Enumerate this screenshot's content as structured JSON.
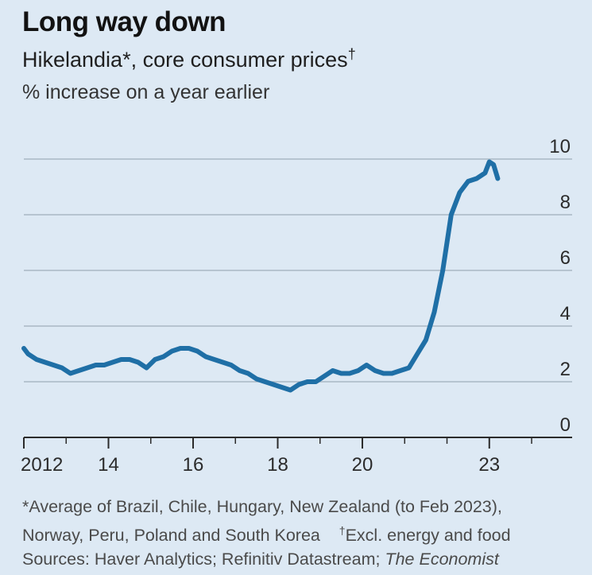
{
  "header": {
    "title": "Long way down",
    "subtitle": "Hikelandia*, core consumer prices",
    "subtitle_mark": "†",
    "unit": "% increase on a year earlier"
  },
  "footnote": {
    "line1": "*Average of Brazil, Chile, Hungary, New Zealand (to Feb 2023),",
    "line2a": "Norway, Peru, Poland and South Korea",
    "line2_mark": "†",
    "line2b": "Excl. energy and food",
    "sources_prefix": "Sources: Haver Analytics; Refinitiv Datastream; ",
    "sources_italic": "The Economist"
  },
  "colors": {
    "background": "#dde9f4",
    "line": "#1f6fa6",
    "grid": "#a9b7c3",
    "axis": "#2b2b2b"
  },
  "chart_data": {
    "type": "line",
    "title": "Long way down",
    "subtitle": "Hikelandia*, core consumer prices†",
    "ylabel": "% increase on a year earlier",
    "xlim": [
      2012.0,
      2024.3
    ],
    "ylim": [
      0,
      10
    ],
    "y_ticks": [
      0,
      2,
      4,
      6,
      8,
      10
    ],
    "x_ticks": [
      {
        "value": 2012,
        "label": "2012"
      },
      {
        "value": 2014,
        "label": "14"
      },
      {
        "value": 2016,
        "label": "16"
      },
      {
        "value": 2018,
        "label": "18"
      },
      {
        "value": 2020,
        "label": "20"
      },
      {
        "value": 2023,
        "label": "23"
      }
    ],
    "grid": true,
    "series": [
      {
        "x": [
          2012.0,
          2012.1,
          2012.3,
          2012.5,
          2012.7,
          2012.9,
          2013.1,
          2013.3,
          2013.5,
          2013.7,
          2013.9,
          2014.1,
          2014.3,
          2014.5,
          2014.7,
          2014.9,
          2015.1,
          2015.3,
          2015.5,
          2015.7,
          2015.9,
          2016.1,
          2016.3,
          2016.5,
          2016.7,
          2016.9,
          2017.1,
          2017.3,
          2017.5,
          2017.7,
          2017.9,
          2018.1,
          2018.3,
          2018.5,
          2018.7,
          2018.9,
          2019.1,
          2019.3,
          2019.5,
          2019.7,
          2019.9,
          2020.1,
          2020.3,
          2020.5,
          2020.7,
          2020.9,
          2021.1,
          2021.3,
          2021.5,
          2021.7,
          2021.9,
          2022.1,
          2022.3,
          2022.5,
          2022.7,
          2022.9,
          2023.0,
          2023.1,
          2023.2
        ],
        "values": [
          3.2,
          3.0,
          2.8,
          2.7,
          2.6,
          2.5,
          2.3,
          2.4,
          2.5,
          2.6,
          2.6,
          2.7,
          2.8,
          2.8,
          2.7,
          2.5,
          2.8,
          2.9,
          3.1,
          3.2,
          3.2,
          3.1,
          2.9,
          2.8,
          2.7,
          2.6,
          2.4,
          2.3,
          2.1,
          2.0,
          1.9,
          1.8,
          1.7,
          1.9,
          2.0,
          2.0,
          2.2,
          2.4,
          2.3,
          2.3,
          2.4,
          2.6,
          2.4,
          2.3,
          2.3,
          2.4,
          2.5,
          3.0,
          3.5,
          4.5,
          6.0,
          8.0,
          8.8,
          9.2,
          9.3,
          9.5,
          9.9,
          9.8,
          9.3
        ]
      }
    ]
  }
}
